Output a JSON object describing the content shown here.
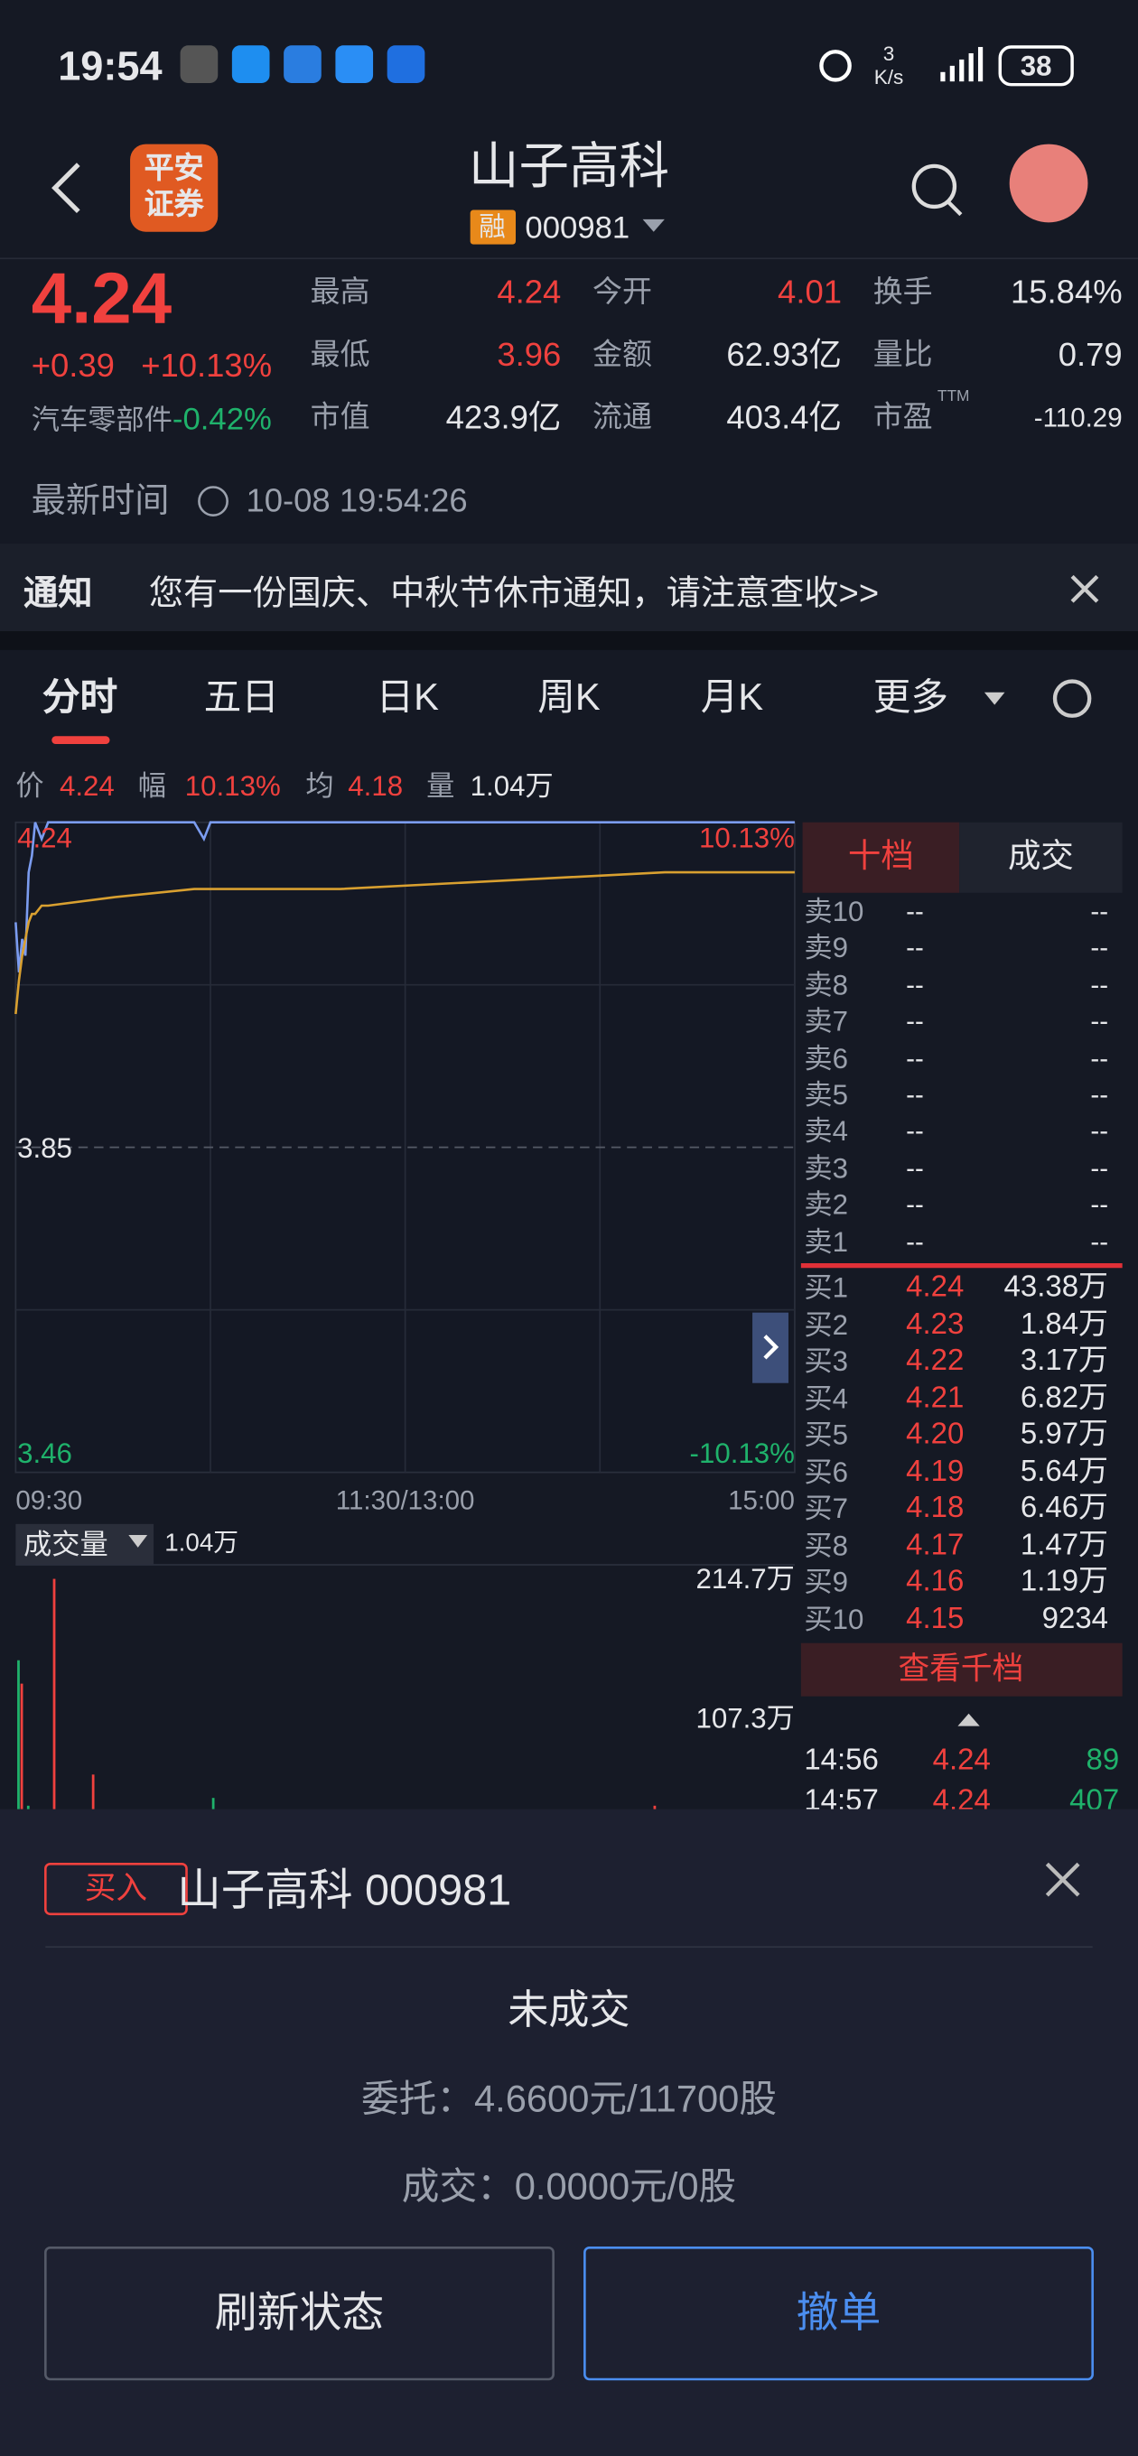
{
  "status_bar": {
    "time": "19:54",
    "speed_value": "3",
    "speed_unit": "K/s",
    "battery": "38"
  },
  "header": {
    "logo": [
      "平安",
      "证券"
    ],
    "title": "山子高科",
    "tag": "融",
    "code": "000981"
  },
  "quote": {
    "price": "4.24",
    "change": "+0.39",
    "change_percent": "+10.13%",
    "sector": "汽车零部件",
    "sector_change": "-0.42%",
    "stats": [
      [
        {
          "label": "最高",
          "value": "4.24"
        },
        {
          "label": "今开",
          "value": "4.01"
        },
        {
          "label": "换手",
          "value": "15.84%"
        }
      ],
      [
        {
          "label": "最低",
          "value": "3.96"
        },
        {
          "label": "金额",
          "value": "62.93亿"
        },
        {
          "label": "量比",
          "value": "0.79"
        }
      ],
      [
        {
          "label": "市值",
          "value": "423.9亿"
        },
        {
          "label": "流通",
          "value": "403.4亿"
        },
        {
          "label": "市盈",
          "sup": "TTM",
          "value": "-110.29"
        }
      ]
    ],
    "time_label": "最新时间",
    "time": "10-08 19:54:26"
  },
  "notice": {
    "label": "通知",
    "text": "您有一份国庆、中秋节休市通知，请注意查收>>"
  },
  "tabs": [
    "分时",
    "五日",
    "日K",
    "周K",
    "月K",
    "更多"
  ],
  "summary": [
    {
      "label": "价",
      "value": "4.24"
    },
    {
      "label": "幅",
      "value": "10.13%"
    },
    {
      "label": "均",
      "value": "4.18"
    },
    {
      "label": "量",
      "value": "1.04万"
    }
  ],
  "volume_header": {
    "label": "成交量",
    "value": "1.04万"
  },
  "chart_data": [
    {
      "type": "line",
      "x": [
        0,
        1,
        2,
        3,
        4,
        5,
        6,
        8,
        10,
        30,
        55,
        58,
        60,
        100,
        150,
        200,
        240
      ],
      "series": [
        {
          "color": "#7b9cf0",
          "values": [
            4.12,
            4.06,
            4.1,
            4.08,
            4.18,
            4.2,
            4.24,
            4.22,
            4.24,
            4.24,
            4.24,
            4.22,
            4.24,
            4.24,
            4.24,
            4.24,
            4.24
          ]
        },
        {
          "color": "#d9a030",
          "values": [
            4.01,
            4.05,
            4.08,
            4.1,
            4.12,
            4.13,
            4.13,
            4.14,
            4.14,
            4.15,
            4.16,
            4.16,
            4.16,
            4.16,
            4.17,
            4.18,
            4.18
          ]
        }
      ],
      "xlim": [
        0,
        240
      ],
      "xticks": [
        {
          "value": 0,
          "label": "09:30"
        },
        {
          "value": 120,
          "label": "11:30/13:00"
        },
        {
          "value": 240,
          "label": "15:00"
        }
      ],
      "ylim": [
        3.46,
        4.24
      ],
      "yticks": [
        4.24,
        3.85,
        3.46
      ],
      "y2lim": [
        -10.13,
        10.13
      ],
      "y2ticks": [
        {
          "value": 10.13,
          "label": "10.13%"
        },
        {
          "value": -10.13,
          "label": "-10.13%"
        }
      ],
      "grid": true
    },
    {
      "type": "bar",
      "x": [
        0,
        1,
        3,
        11,
        23,
        60,
        196
      ],
      "values": [
        152,
        134,
        40,
        214.7,
        64,
        46,
        40
      ],
      "colors": [
        "#1fb26b",
        "#f0413e",
        "#1fb26b",
        "#f0413e",
        "#f0413e",
        "#1fb26b",
        "#f0413e"
      ],
      "xlim": [
        0,
        240
      ],
      "ylim": [
        0,
        214.7
      ],
      "yticks": [
        {
          "value": 214.7,
          "label": "214.7万"
        },
        {
          "value": 107.3,
          "label": "107.3万"
        }
      ]
    }
  ],
  "order_book": {
    "tabs": [
      "十档",
      "成交"
    ],
    "asks": [
      [
        "卖10",
        "--",
        "--"
      ],
      [
        "卖9",
        "--",
        "--"
      ],
      [
        "卖8",
        "--",
        "--"
      ],
      [
        "卖7",
        "--",
        "--"
      ],
      [
        "卖6",
        "--",
        "--"
      ],
      [
        "卖5",
        "--",
        "--"
      ],
      [
        "卖4",
        "--",
        "--"
      ],
      [
        "卖3",
        "--",
        "--"
      ],
      [
        "卖2",
        "--",
        "--"
      ],
      [
        "卖1",
        "--",
        "--"
      ]
    ],
    "bids": [
      [
        "买1",
        "4.24",
        "43.38万"
      ],
      [
        "买2",
        "4.23",
        "1.84万"
      ],
      [
        "买3",
        "4.22",
        "3.17万"
      ],
      [
        "买4",
        "4.21",
        "6.82万"
      ],
      [
        "买5",
        "4.20",
        "5.97万"
      ],
      [
        "买6",
        "4.19",
        "5.64万"
      ],
      [
        "买7",
        "4.18",
        "6.46万"
      ],
      [
        "买8",
        "4.17",
        "1.47万"
      ],
      [
        "买9",
        "4.16",
        "1.19万"
      ],
      [
        "买10",
        "4.15",
        "9234"
      ]
    ],
    "more": "查看千档",
    "trades": [
      [
        "14:56",
        "4.24",
        "89"
      ],
      [
        "14:57",
        "4.24",
        "407"
      ]
    ]
  },
  "order_panel": {
    "side": "买入",
    "stock": "山子高科 000981",
    "status": "未成交",
    "entrust": "委托：4.6600元/11700股",
    "filled": "成交：0.0000元/0股",
    "buttons": [
      "刷新状态",
      "撤单"
    ]
  }
}
